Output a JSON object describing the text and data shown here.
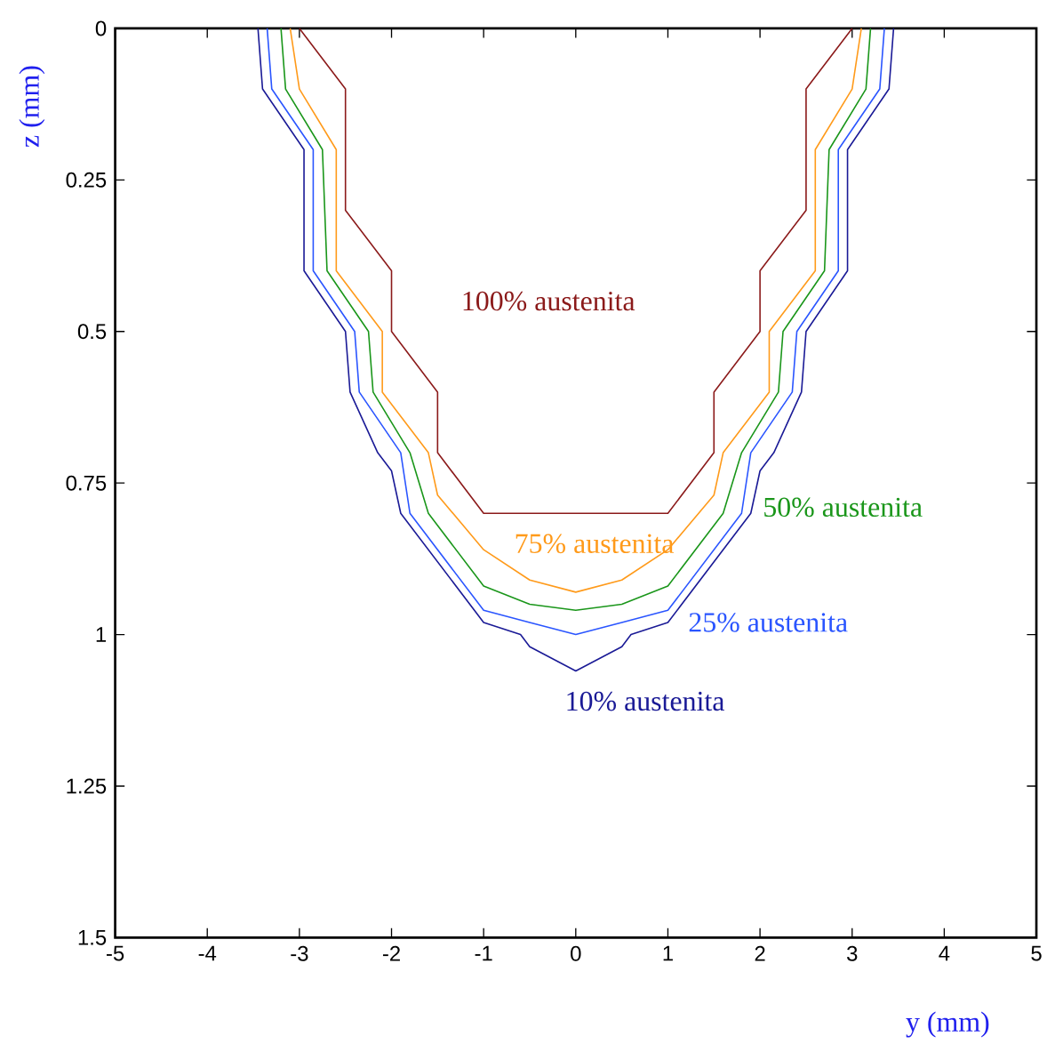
{
  "chart_data": {
    "type": "line",
    "xlabel": "y (mm)",
    "ylabel": "z (mm)",
    "xlim": [
      -5,
      5
    ],
    "ylim": [
      1.5,
      0
    ],
    "xticks": [
      -5,
      -4,
      -3,
      -2,
      -1,
      0,
      1,
      2,
      3,
      4,
      5
    ],
    "yticks": [
      0,
      0.25,
      0.5,
      0.75,
      1,
      1.25,
      1.5
    ],
    "series": [
      {
        "name": "100% austenita",
        "color": "#8b1a1a",
        "x": [
          -3,
          -2.5,
          -2.5,
          -2,
          -2,
          -1.5,
          -1.5,
          -1,
          1,
          1.5,
          1.5,
          2,
          2,
          2.5,
          2.5,
          3
        ],
        "values": [
          0,
          0.1,
          0.3,
          0.4,
          0.5,
          0.6,
          0.7,
          0.8,
          0.8,
          0.7,
          0.6,
          0.5,
          0.4,
          0.3,
          0.1,
          0
        ]
      },
      {
        "name": "75% austenita",
        "color": "#ff9a1a",
        "x": [
          -3.1,
          -3.0,
          -2.6,
          -2.6,
          -2.1,
          -2.1,
          -1.6,
          -1.5,
          -1.0,
          -0.5,
          0,
          0.5,
          1.0,
          1.5,
          1.6,
          2.1,
          2.1,
          2.6,
          2.6,
          3.0,
          3.1
        ],
        "values": [
          0,
          0.1,
          0.2,
          0.4,
          0.5,
          0.6,
          0.7,
          0.77,
          0.86,
          0.91,
          0.93,
          0.91,
          0.86,
          0.77,
          0.7,
          0.6,
          0.5,
          0.4,
          0.2,
          0.1,
          0
        ]
      },
      {
        "name": "50% austenita",
        "color": "#1a961a",
        "x": [
          -3.2,
          -3.15,
          -2.75,
          -2.7,
          -2.25,
          -2.2,
          -1.8,
          -1.6,
          -1.0,
          -0.5,
          0,
          0.5,
          1.0,
          1.6,
          1.8,
          2.2,
          2.25,
          2.7,
          2.75,
          3.15,
          3.2
        ],
        "values": [
          0,
          0.1,
          0.2,
          0.4,
          0.5,
          0.6,
          0.7,
          0.8,
          0.92,
          0.95,
          0.96,
          0.95,
          0.92,
          0.8,
          0.7,
          0.6,
          0.5,
          0.4,
          0.2,
          0.1,
          0
        ]
      },
      {
        "name": "25% austenita",
        "color": "#2a55ff",
        "x": [
          -3.35,
          -3.3,
          -2.85,
          -2.85,
          -2.4,
          -2.35,
          -1.9,
          -1.8,
          -1.0,
          -0.5,
          0,
          0.5,
          1.0,
          1.8,
          1.9,
          2.35,
          2.4,
          2.85,
          2.85,
          3.3,
          3.35
        ],
        "values": [
          0,
          0.1,
          0.2,
          0.4,
          0.5,
          0.6,
          0.7,
          0.8,
          0.96,
          0.98,
          1.0,
          0.98,
          0.96,
          0.8,
          0.7,
          0.6,
          0.5,
          0.4,
          0.2,
          0.1,
          0
        ]
      },
      {
        "name": "10% austenita",
        "color": "#1a1a96",
        "x": [
          -3.45,
          -3.4,
          -2.95,
          -2.95,
          -2.5,
          -2.45,
          -2.15,
          -2.0,
          -1.9,
          -1.0,
          -0.6,
          -0.5,
          0,
          0.5,
          0.6,
          1.0,
          1.9,
          2.0,
          2.15,
          2.45,
          2.5,
          2.95,
          2.95,
          3.4,
          3.45
        ],
        "values": [
          0,
          0.1,
          0.2,
          0.4,
          0.5,
          0.6,
          0.7,
          0.73,
          0.8,
          0.98,
          1.0,
          1.02,
          1.06,
          1.02,
          1.0,
          0.98,
          0.8,
          0.73,
          0.7,
          0.6,
          0.5,
          0.4,
          0.2,
          0.1,
          0
        ]
      }
    ]
  }
}
